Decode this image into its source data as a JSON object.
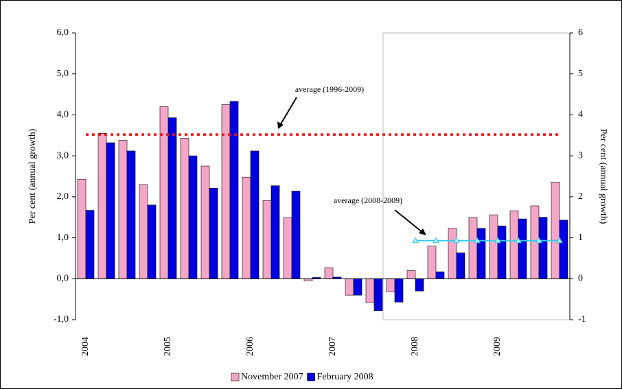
{
  "chart_data": {
    "type": "bar",
    "y_label": "Per cent (annual growth)",
    "y2_label": "Per cent (annual growth)",
    "categories": [
      "2004",
      null,
      null,
      null,
      "2005",
      null,
      null,
      null,
      "2006",
      null,
      null,
      null,
      "2007",
      null,
      null,
      null,
      "2008",
      null,
      null,
      null,
      "2009",
      null,
      null,
      null
    ],
    "series": [
      {
        "name": "November 2007",
        "color": "#f4a6c8",
        "values": [
          2.43,
          3.55,
          3.38,
          2.3,
          4.2,
          3.43,
          2.75,
          4.25,
          2.48,
          1.91,
          1.49,
          -0.05,
          0.27,
          -0.4,
          -0.58,
          -0.32,
          0.2,
          0.8,
          1.23,
          1.5,
          1.56,
          1.66,
          1.78,
          2.36
        ]
      },
      {
        "name": "February 2008",
        "color": "#0000e0",
        "values": [
          1.67,
          3.32,
          3.12,
          1.8,
          3.93,
          3.0,
          2.21,
          4.33,
          3.12,
          2.27,
          2.14,
          0.03,
          0.04,
          -0.4,
          -0.78,
          -0.57,
          -0.3,
          0.17,
          0.63,
          1.23,
          1.29,
          1.46,
          1.5,
          1.43
        ]
      }
    ],
    "lines": [
      {
        "label": "average (1996-2009)",
        "color": "#ee1111",
        "style": "dotted",
        "values": [
          3.52,
          3.52,
          3.52,
          3.52,
          3.52,
          3.52,
          3.52,
          3.52,
          3.52,
          3.52,
          3.52,
          3.52,
          3.52,
          3.52,
          3.52,
          3.52,
          3.52,
          3.52,
          3.52,
          3.52,
          3.52,
          3.52,
          3.52,
          3.52
        ]
      },
      {
        "label": "average (2008-2009)",
        "color": "#33ccee",
        "style": "solid",
        "values": [
          null,
          null,
          null,
          null,
          null,
          null,
          null,
          null,
          null,
          null,
          null,
          null,
          null,
          null,
          null,
          null,
          0.93,
          0.93,
          0.93,
          0.93,
          0.93,
          0.93,
          0.93,
          0.93
        ]
      }
    ],
    "ylim": [
      -1,
      6
    ],
    "yticks": [
      {
        "value": -1,
        "label": "-1,0"
      },
      {
        "value": 0,
        "label": "0,0"
      },
      {
        "value": 1,
        "label": "1,0"
      },
      {
        "value": 2,
        "label": "2,0"
      },
      {
        "value": 3,
        "label": "3,0"
      },
      {
        "value": 4,
        "label": "4,0"
      },
      {
        "value": 5,
        "label": "5,0"
      },
      {
        "value": 6,
        "label": "6,0"
      }
    ],
    "y2lim": [
      -1,
      6
    ],
    "y2ticks": [
      -1,
      0,
      1,
      2,
      3,
      4,
      5,
      6
    ],
    "legend": "bottom"
  }
}
